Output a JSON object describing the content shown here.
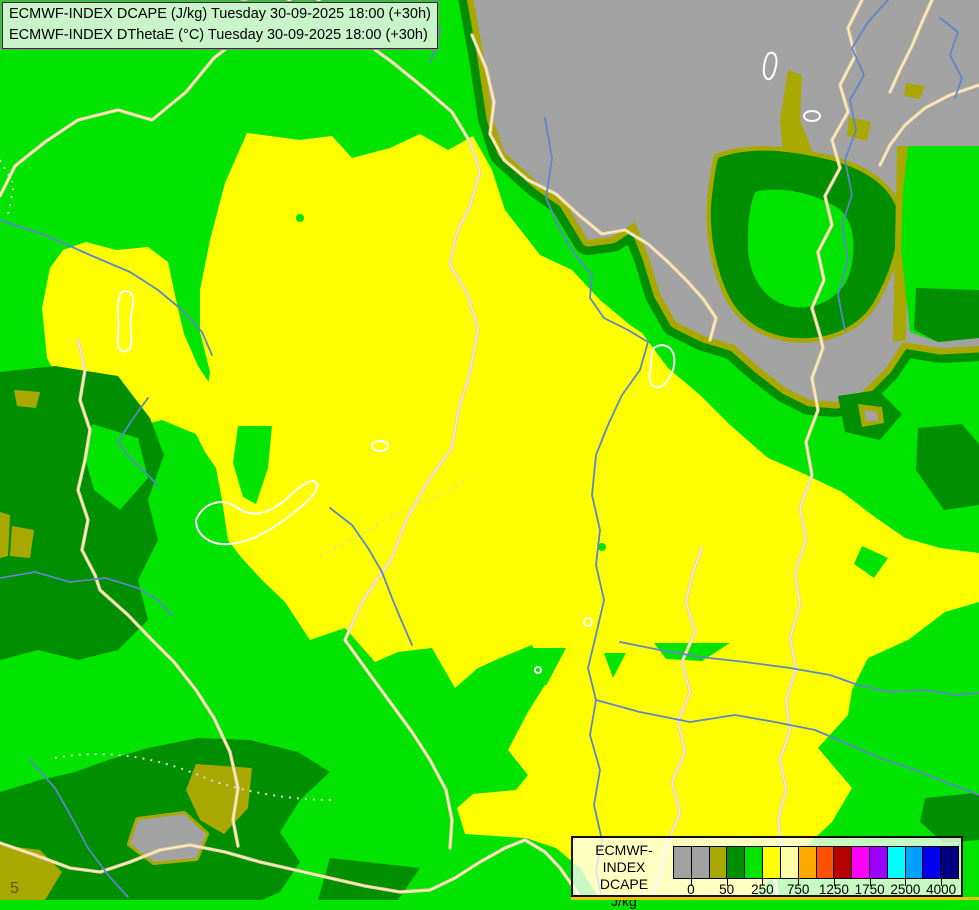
{
  "title_box": {
    "line1": "ECMWF-INDEX DCAPE (J/kg) Tuesday 30-09-2025 18:00 (+30h)",
    "line2": "ECMWF-INDEX DThetaE (°C) Tuesday 30-09-2025 18:00 (+30h)"
  },
  "legend": {
    "product": "ECMWF-INDEX",
    "parameter": "DCAPE",
    "unit": "J/kg",
    "tick_labels": [
      "0",
      "50",
      "250",
      "750",
      "1250",
      "1750",
      "2500",
      "4000"
    ],
    "tick_boundaries": [
      1,
      3,
      5,
      7,
      9,
      11,
      13,
      15
    ],
    "swatch_colors": [
      "#A2A2A2",
      "#A2A2A2",
      "#A8A800",
      "#008F00",
      "#00E400",
      "#FFFF00",
      "#FFFFA8",
      "#FFA800",
      "#FF5000",
      "#B40000",
      "#FF00FF",
      "#9B00FF",
      "#00FFFF",
      "#00A0FF",
      "#0000F0",
      "#000080"
    ]
  },
  "map": {
    "contour_label": "5",
    "colors": {
      "background_green": "#00E400",
      "band_dark_green": "#008F00",
      "band_olive": "#A8A800",
      "band_gray": "#A2A2A2",
      "band_yellow": "#FFFF00",
      "border_line": "#EDD5A0",
      "border_highlight": "#FBF0D2",
      "river_line": "#5E86C8",
      "dotted_line": "#D9D9C4",
      "lake_outline": "#FFFFFF",
      "contour_text": "#5c5c00"
    }
  }
}
